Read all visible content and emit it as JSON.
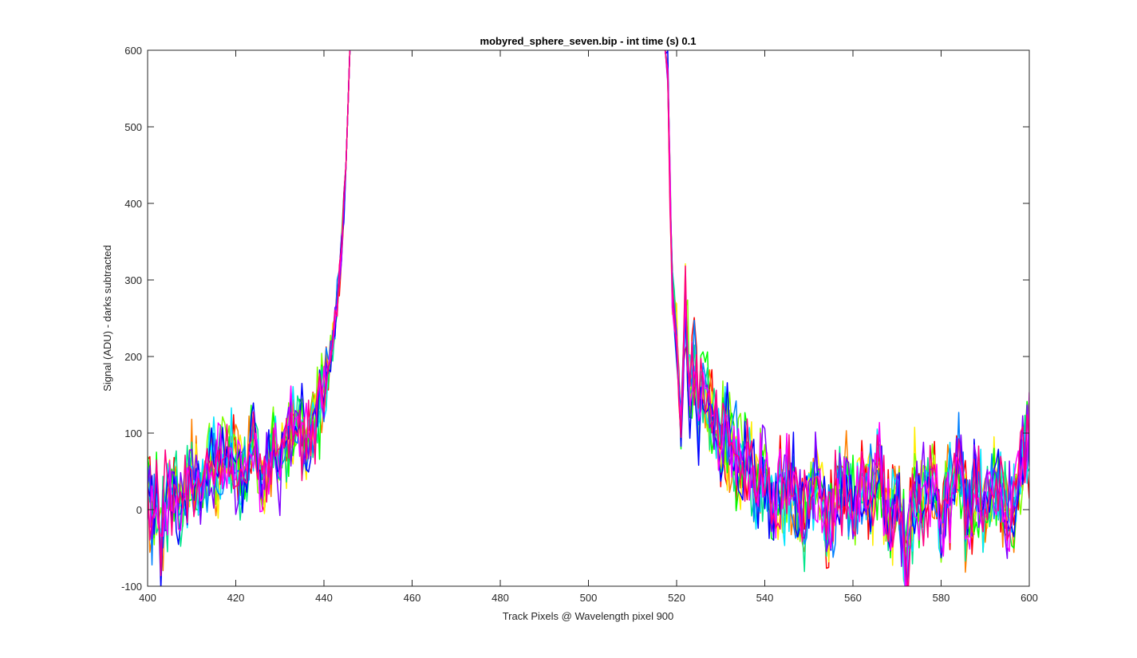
{
  "chart_data": {
    "type": "line",
    "title": "mobyred_sphere_seven.bip - int time (s) 0.1",
    "xlabel": "Track Pixels @ Wavelength pixel 900",
    "ylabel": "Signal (ADU) - darks subtracted",
    "xlim": [
      400,
      600
    ],
    "ylim": [
      -100,
      600
    ],
    "xticks": [
      400,
      420,
      440,
      460,
      480,
      500,
      520,
      540,
      560,
      580,
      600
    ],
    "yticks": [
      -100,
      0,
      100,
      200,
      300,
      400,
      500,
      600
    ],
    "xtick_labels": [
      "400",
      "420",
      "440",
      "460",
      "480",
      "500",
      "520",
      "540",
      "560",
      "580",
      "600"
    ],
    "ytick_labels": [
      "-100",
      "0",
      "100",
      "200",
      "300",
      "400",
      "500",
      "600"
    ],
    "grid": false,
    "legend": "none",
    "series_colors": [
      "#ff0000",
      "#ff8000",
      "#ffee00",
      "#7fff00",
      "#00ff00",
      "#00e68a",
      "#00e5ff",
      "#0080ff",
      "#0000ff",
      "#8000ff",
      "#ff00ff",
      "#ff0080"
    ],
    "series": [
      {
        "x": [
          400,
          401,
          402,
          403,
          404,
          406,
          408,
          410,
          412,
          414,
          416,
          418,
          420,
          422,
          424,
          426,
          428,
          430,
          432,
          434,
          436,
          438,
          440,
          441,
          442,
          443,
          444,
          445,
          446
        ],
        "values": [
          60,
          -15,
          25,
          -45,
          10,
          30,
          5,
          55,
          20,
          60,
          45,
          85,
          55,
          40,
          90,
          35,
          80,
          60,
          95,
          110,
          90,
          120,
          150,
          180,
          220,
          270,
          340,
          450,
          620
        ]
      },
      {
        "x": [
          517,
          518,
          519,
          520,
          521,
          522,
          523,
          524,
          525,
          526,
          528,
          530,
          532,
          534,
          536,
          538,
          540,
          542,
          544,
          546,
          548,
          550,
          552,
          554,
          556,
          558,
          560,
          562,
          564,
          566,
          568,
          570,
          572,
          574,
          576,
          578,
          580,
          582,
          584,
          586,
          588,
          590,
          592,
          594,
          596,
          598,
          600
        ],
        "values": [
          620,
          570,
          280,
          230,
          90,
          270,
          150,
          200,
          130,
          160,
          120,
          90,
          100,
          60,
          70,
          30,
          50,
          -10,
          25,
          40,
          -20,
          10,
          55,
          -30,
          20,
          45,
          -5,
          35,
          15,
          60,
          -20,
          25,
          -70,
          30,
          10,
          45,
          -15,
          20,
          60,
          -25,
          30,
          -5,
          40,
          15,
          -10,
          50,
          90
        ]
      }
    ]
  }
}
